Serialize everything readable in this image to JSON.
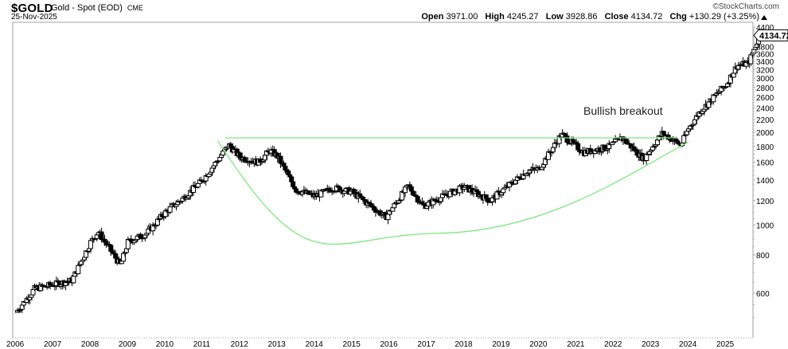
{
  "header": {
    "symbol": "$GOLD",
    "name": "Gold - Spot (EOD)",
    "exchange": "CME",
    "date": "25-Nov-2025",
    "brand": "©StockCharts.com",
    "open_label": "Open",
    "open": "3971.00",
    "high_label": "High",
    "high": "4245.27",
    "low_label": "Low",
    "low": "3928.86",
    "close_label": "Close",
    "close": "4134.72",
    "chg_label": "Chg",
    "chg": "+130.29 (+3.25%)",
    "chg_icon": "up-triangle-icon"
  },
  "colors": {
    "frame": "#a0a0a0",
    "candle": "#000000",
    "trendline": "#7de87d",
    "background": "#ffffff"
  },
  "chart_data": {
    "type": "candlestick",
    "title": "$GOLD Gold - Spot (EOD) CME",
    "subtitle": "25-Nov-2025",
    "scale": "log",
    "xlabel": "",
    "ylabel": "",
    "ylim": [
      430,
      4600
    ],
    "x_ticks": [
      "2006",
      "2007",
      "2008",
      "2009",
      "2010",
      "2011",
      "2012",
      "2013",
      "2014",
      "2015",
      "2016",
      "2017",
      "2018",
      "2019",
      "2020",
      "2021",
      "2022",
      "2023",
      "2024",
      "2025"
    ],
    "y_ticks": [
      600,
      800,
      1000,
      1200,
      1400,
      1600,
      1800,
      2000,
      2200,
      2400,
      2600,
      2800,
      3000,
      3200,
      3400,
      3600,
      3800,
      4400
    ],
    "last_value_label": "4134.72",
    "annotations": [
      {
        "text": "Bullish breakout",
        "x": "2021.6",
        "y": 2350
      },
      {
        "type": "horizontal_line",
        "label": "resistance",
        "y": 1920,
        "x_from": "2011.6",
        "x_to": "2023.7",
        "color": "#7de87d"
      },
      {
        "type": "curve",
        "label": "cup (rounded bottom)",
        "x_from": "2011.4",
        "x_to": "2024.0",
        "min_y": 940,
        "min_x": "2017.3",
        "color": "#7de87d"
      }
    ],
    "approx_close_by_year": [
      {
        "x": "2006.0",
        "close": 520
      },
      {
        "x": "2006.5",
        "close": 620
      },
      {
        "x": "2007.0",
        "close": 640
      },
      {
        "x": "2007.5",
        "close": 660
      },
      {
        "x": "2008.0",
        "close": 880
      },
      {
        "x": "2008.2",
        "close": 950
      },
      {
        "x": "2008.8",
        "close": 740
      },
      {
        "x": "2009.0",
        "close": 880
      },
      {
        "x": "2009.5",
        "close": 940
      },
      {
        "x": "2010.0",
        "close": 1100
      },
      {
        "x": "2010.5",
        "close": 1230
      },
      {
        "x": "2011.0",
        "close": 1400
      },
      {
        "x": "2011.7",
        "close": 1820
      },
      {
        "x": "2012.0",
        "close": 1660
      },
      {
        "x": "2012.5",
        "close": 1600
      },
      {
        "x": "2012.8",
        "close": 1750
      },
      {
        "x": "2013.0",
        "close": 1670
      },
      {
        "x": "2013.5",
        "close": 1300
      },
      {
        "x": "2014.0",
        "close": 1240
      },
      {
        "x": "2014.5",
        "close": 1320
      },
      {
        "x": "2015.0",
        "close": 1280
      },
      {
        "x": "2015.9",
        "close": 1060
      },
      {
        "x": "2016.5",
        "close": 1340
      },
      {
        "x": "2016.9",
        "close": 1150
      },
      {
        "x": "2017.5",
        "close": 1250
      },
      {
        "x": "2018.0",
        "close": 1330
      },
      {
        "x": "2018.7",
        "close": 1200
      },
      {
        "x": "2019.0",
        "close": 1290
      },
      {
        "x": "2019.7",
        "close": 1500
      },
      {
        "x": "2020.0",
        "close": 1520
      },
      {
        "x": "2020.6",
        "close": 1970
      },
      {
        "x": "2021.2",
        "close": 1720
      },
      {
        "x": "2021.9",
        "close": 1800
      },
      {
        "x": "2022.2",
        "close": 1930
      },
      {
        "x": "2022.8",
        "close": 1640
      },
      {
        "x": "2023.3",
        "close": 1990
      },
      {
        "x": "2023.8",
        "close": 1820
      },
      {
        "x": "2024.0",
        "close": 2060
      },
      {
        "x": "2024.3",
        "close": 2330
      },
      {
        "x": "2024.8",
        "close": 2700
      },
      {
        "x": "2025.0",
        "close": 2850
      },
      {
        "x": "2025.3",
        "close": 3300
      },
      {
        "x": "2025.6",
        "close": 3350
      },
      {
        "x": "2025.8",
        "close": 3850
      },
      {
        "x": "2025.9",
        "close": 4134.72
      }
    ]
  }
}
